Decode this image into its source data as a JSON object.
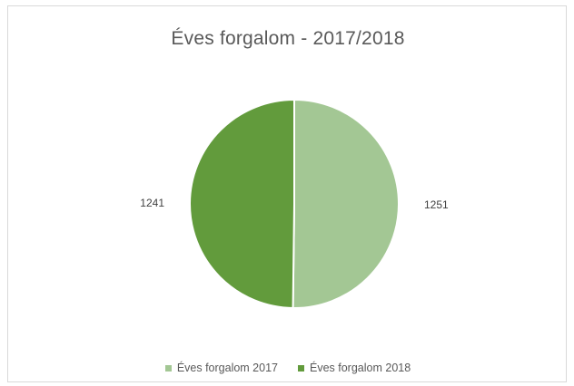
{
  "chart_data": {
    "type": "pie",
    "title": "Éves forgalom - 2017/2018",
    "categories": [
      "Éves forgalom 2017",
      "Éves forgalom 2018"
    ],
    "values": [
      1251,
      1241
    ],
    "colors": [
      "#a3c794",
      "#629b3c"
    ],
    "data_labels": [
      "1251",
      "1241"
    ],
    "legend": "bottom",
    "start_angle": "top",
    "direction": "clockwise",
    "slice_border_color": "#ffffff"
  }
}
